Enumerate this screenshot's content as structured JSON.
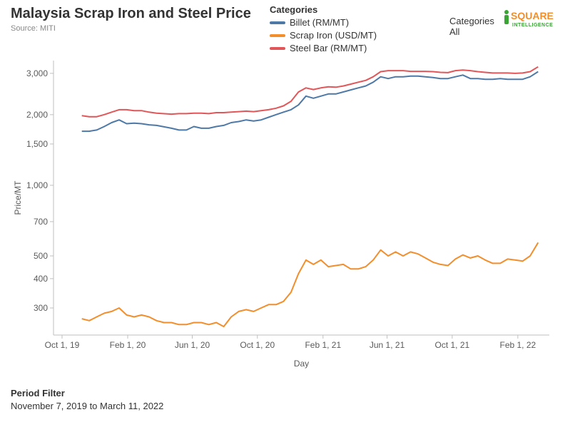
{
  "title": "Malaysia Scrap Iron and Steel Price",
  "subtitle": "Source: MITI",
  "legend": {
    "title": "Categories",
    "items": [
      {
        "label": "Billet (RM/MT)",
        "color": "#4e79a7"
      },
      {
        "label": "Scrap Iron (USD/MT)",
        "color": "#f28e2b"
      },
      {
        "label": "Steel Bar (RM/MT)",
        "color": "#e15759"
      }
    ]
  },
  "filter_legend": {
    "title": "Categories",
    "value": "All"
  },
  "logo": {
    "i_color": "#3aa535",
    "square_color": "#f28e2b",
    "sub_color": "#3aa535",
    "text1": "SQUARE",
    "text2": "INTELLIGENCE"
  },
  "period_filter": {
    "label": "Period Filter",
    "value": "November 7, 2019 to March 11, 2022"
  },
  "chart": {
    "type": "line",
    "background_color": "#ffffff",
    "axis_color": "#bfbfbf",
    "tick_color": "#bfbfbf",
    "tick_font_size": 12,
    "label_font_size": 12,
    "text_color": "#5a5a5a",
    "line_width": 2,
    "ylabel": "Price/MT",
    "xlabel": "Day",
    "yscale": "log",
    "yticks": [
      300,
      400,
      500,
      700,
      1000,
      1500,
      2000,
      3000
    ],
    "ytick_labels": [
      "300",
      "400",
      "500",
      "700",
      "1,000",
      "1,500",
      "2,000",
      "3,000"
    ],
    "ylim": [
      230,
      3400
    ],
    "x_start": "2019-09-15",
    "x_end": "2022-04-01",
    "xtick_dates": [
      "2019-10-01",
      "2020-02-01",
      "2020-06-01",
      "2020-10-01",
      "2021-02-01",
      "2021-06-01",
      "2021-10-01",
      "2022-02-01"
    ],
    "xtick_labels": [
      "Oct 1, 19",
      "Feb 1, 20",
      "Jun 1, 20",
      "Oct 1, 20",
      "Feb 1, 21",
      "Jun 1, 21",
      "Oct 1, 21",
      "Feb 1, 22"
    ],
    "series": [
      {
        "name": "Billet (RM/MT)",
        "color": "#4e79a7",
        "points": [
          [
            "2019-11-07",
            1700
          ],
          [
            "2019-11-21",
            1700
          ],
          [
            "2019-12-05",
            1720
          ],
          [
            "2019-12-19",
            1780
          ],
          [
            "2020-01-02",
            1850
          ],
          [
            "2020-01-16",
            1900
          ],
          [
            "2020-01-30",
            1830
          ],
          [
            "2020-02-13",
            1840
          ],
          [
            "2020-02-27",
            1830
          ],
          [
            "2020-03-12",
            1810
          ],
          [
            "2020-03-26",
            1800
          ],
          [
            "2020-04-23",
            1750
          ],
          [
            "2020-05-07",
            1720
          ],
          [
            "2020-05-21",
            1720
          ],
          [
            "2020-06-04",
            1780
          ],
          [
            "2020-06-18",
            1750
          ],
          [
            "2020-07-02",
            1750
          ],
          [
            "2020-07-16",
            1780
          ],
          [
            "2020-07-30",
            1800
          ],
          [
            "2020-08-13",
            1850
          ],
          [
            "2020-08-27",
            1870
          ],
          [
            "2020-09-10",
            1900
          ],
          [
            "2020-09-24",
            1880
          ],
          [
            "2020-10-08",
            1900
          ],
          [
            "2020-10-22",
            1950
          ],
          [
            "2020-11-05",
            2000
          ],
          [
            "2020-11-19",
            2050
          ],
          [
            "2020-12-03",
            2100
          ],
          [
            "2020-12-17",
            2200
          ],
          [
            "2020-12-31",
            2400
          ],
          [
            "2021-01-14",
            2350
          ],
          [
            "2021-01-28",
            2400
          ],
          [
            "2021-02-11",
            2450
          ],
          [
            "2021-02-25",
            2450
          ],
          [
            "2021-03-11",
            2500
          ],
          [
            "2021-03-25",
            2550
          ],
          [
            "2021-04-08",
            2600
          ],
          [
            "2021-04-22",
            2650
          ],
          [
            "2021-05-06",
            2750
          ],
          [
            "2021-05-20",
            2900
          ],
          [
            "2021-06-03",
            2850
          ],
          [
            "2021-06-17",
            2900
          ],
          [
            "2021-07-01",
            2900
          ],
          [
            "2021-07-15",
            2920
          ],
          [
            "2021-07-29",
            2920
          ],
          [
            "2021-08-12",
            2900
          ],
          [
            "2021-08-26",
            2880
          ],
          [
            "2021-09-09",
            2850
          ],
          [
            "2021-09-23",
            2850
          ],
          [
            "2021-10-07",
            2900
          ],
          [
            "2021-10-21",
            2950
          ],
          [
            "2021-11-04",
            2850
          ],
          [
            "2021-11-18",
            2850
          ],
          [
            "2021-12-02",
            2830
          ],
          [
            "2021-12-16",
            2830
          ],
          [
            "2021-12-30",
            2850
          ],
          [
            "2022-01-13",
            2830
          ],
          [
            "2022-01-27",
            2830
          ],
          [
            "2022-02-10",
            2830
          ],
          [
            "2022-02-24",
            2900
          ],
          [
            "2022-03-11",
            3050
          ]
        ]
      },
      {
        "name": "Scrap Iron (USD/MT)",
        "color": "#f28e2b",
        "points": [
          [
            "2019-11-07",
            270
          ],
          [
            "2019-11-21",
            265
          ],
          [
            "2019-12-05",
            275
          ],
          [
            "2019-12-19",
            285
          ],
          [
            "2020-01-02",
            290
          ],
          [
            "2020-01-16",
            300
          ],
          [
            "2020-01-30",
            280
          ],
          [
            "2020-02-13",
            275
          ],
          [
            "2020-02-27",
            280
          ],
          [
            "2020-03-12",
            275
          ],
          [
            "2020-03-26",
            265
          ],
          [
            "2020-04-09",
            260
          ],
          [
            "2020-04-23",
            260
          ],
          [
            "2020-05-07",
            255
          ],
          [
            "2020-05-21",
            255
          ],
          [
            "2020-06-04",
            260
          ],
          [
            "2020-06-18",
            260
          ],
          [
            "2020-07-02",
            255
          ],
          [
            "2020-07-16",
            260
          ],
          [
            "2020-07-30",
            250
          ],
          [
            "2020-08-13",
            275
          ],
          [
            "2020-08-27",
            290
          ],
          [
            "2020-09-10",
            295
          ],
          [
            "2020-09-24",
            290
          ],
          [
            "2020-10-08",
            300
          ],
          [
            "2020-10-22",
            310
          ],
          [
            "2020-11-05",
            310
          ],
          [
            "2020-11-19",
            320
          ],
          [
            "2020-12-03",
            350
          ],
          [
            "2020-12-17",
            420
          ],
          [
            "2020-12-31",
            480
          ],
          [
            "2021-01-14",
            460
          ],
          [
            "2021-01-28",
            480
          ],
          [
            "2021-02-11",
            450
          ],
          [
            "2021-02-25",
            455
          ],
          [
            "2021-03-11",
            460
          ],
          [
            "2021-03-25",
            440
          ],
          [
            "2021-04-08",
            440
          ],
          [
            "2021-04-22",
            450
          ],
          [
            "2021-05-06",
            480
          ],
          [
            "2021-05-20",
            530
          ],
          [
            "2021-06-03",
            500
          ],
          [
            "2021-06-17",
            520
          ],
          [
            "2021-07-01",
            500
          ],
          [
            "2021-07-15",
            520
          ],
          [
            "2021-07-29",
            510
          ],
          [
            "2021-08-12",
            490
          ],
          [
            "2021-08-26",
            470
          ],
          [
            "2021-09-09",
            460
          ],
          [
            "2021-09-23",
            455
          ],
          [
            "2021-10-07",
            485
          ],
          [
            "2021-10-21",
            505
          ],
          [
            "2021-11-04",
            490
          ],
          [
            "2021-11-18",
            500
          ],
          [
            "2021-12-02",
            480
          ],
          [
            "2021-12-16",
            465
          ],
          [
            "2021-12-30",
            465
          ],
          [
            "2022-01-13",
            485
          ],
          [
            "2022-01-27",
            480
          ],
          [
            "2022-02-10",
            475
          ],
          [
            "2022-02-24",
            500
          ],
          [
            "2022-03-11",
            570
          ]
        ]
      },
      {
        "name": "Steel Bar (RM/MT)",
        "color": "#e15759",
        "points": [
          [
            "2019-11-07",
            1980
          ],
          [
            "2019-11-21",
            1960
          ],
          [
            "2019-12-05",
            1960
          ],
          [
            "2019-12-19",
            2000
          ],
          [
            "2020-01-02",
            2050
          ],
          [
            "2020-01-16",
            2100
          ],
          [
            "2020-01-30",
            2100
          ],
          [
            "2020-02-13",
            2080
          ],
          [
            "2020-02-27",
            2080
          ],
          [
            "2020-03-12",
            2050
          ],
          [
            "2020-03-26",
            2030
          ],
          [
            "2020-04-23",
            2010
          ],
          [
            "2020-05-07",
            2020
          ],
          [
            "2020-05-21",
            2020
          ],
          [
            "2020-06-04",
            2030
          ],
          [
            "2020-06-18",
            2030
          ],
          [
            "2020-07-02",
            2020
          ],
          [
            "2020-07-16",
            2040
          ],
          [
            "2020-07-30",
            2040
          ],
          [
            "2020-08-13",
            2050
          ],
          [
            "2020-08-27",
            2060
          ],
          [
            "2020-09-10",
            2070
          ],
          [
            "2020-09-24",
            2060
          ],
          [
            "2020-10-08",
            2080
          ],
          [
            "2020-10-22",
            2100
          ],
          [
            "2020-11-05",
            2130
          ],
          [
            "2020-11-19",
            2180
          ],
          [
            "2020-12-03",
            2280
          ],
          [
            "2020-12-17",
            2500
          ],
          [
            "2020-12-31",
            2600
          ],
          [
            "2021-01-14",
            2560
          ],
          [
            "2021-01-28",
            2600
          ],
          [
            "2021-02-11",
            2630
          ],
          [
            "2021-02-25",
            2620
          ],
          [
            "2021-03-11",
            2650
          ],
          [
            "2021-03-25",
            2700
          ],
          [
            "2021-04-08",
            2750
          ],
          [
            "2021-04-22",
            2800
          ],
          [
            "2021-05-06",
            2900
          ],
          [
            "2021-05-20",
            3050
          ],
          [
            "2021-06-03",
            3080
          ],
          [
            "2021-06-17",
            3080
          ],
          [
            "2021-07-01",
            3080
          ],
          [
            "2021-07-15",
            3060
          ],
          [
            "2021-07-29",
            3060
          ],
          [
            "2021-08-12",
            3060
          ],
          [
            "2021-08-26",
            3050
          ],
          [
            "2021-09-09",
            3030
          ],
          [
            "2021-09-23",
            3020
          ],
          [
            "2021-10-07",
            3080
          ],
          [
            "2021-10-21",
            3100
          ],
          [
            "2021-11-04",
            3080
          ],
          [
            "2021-11-18",
            3050
          ],
          [
            "2021-12-02",
            3030
          ],
          [
            "2021-12-16",
            3010
          ],
          [
            "2021-12-30",
            3010
          ],
          [
            "2022-01-13",
            3010
          ],
          [
            "2022-01-27",
            3000
          ],
          [
            "2022-02-10",
            3010
          ],
          [
            "2022-02-24",
            3050
          ],
          [
            "2022-03-11",
            3200
          ]
        ]
      }
    ]
  }
}
